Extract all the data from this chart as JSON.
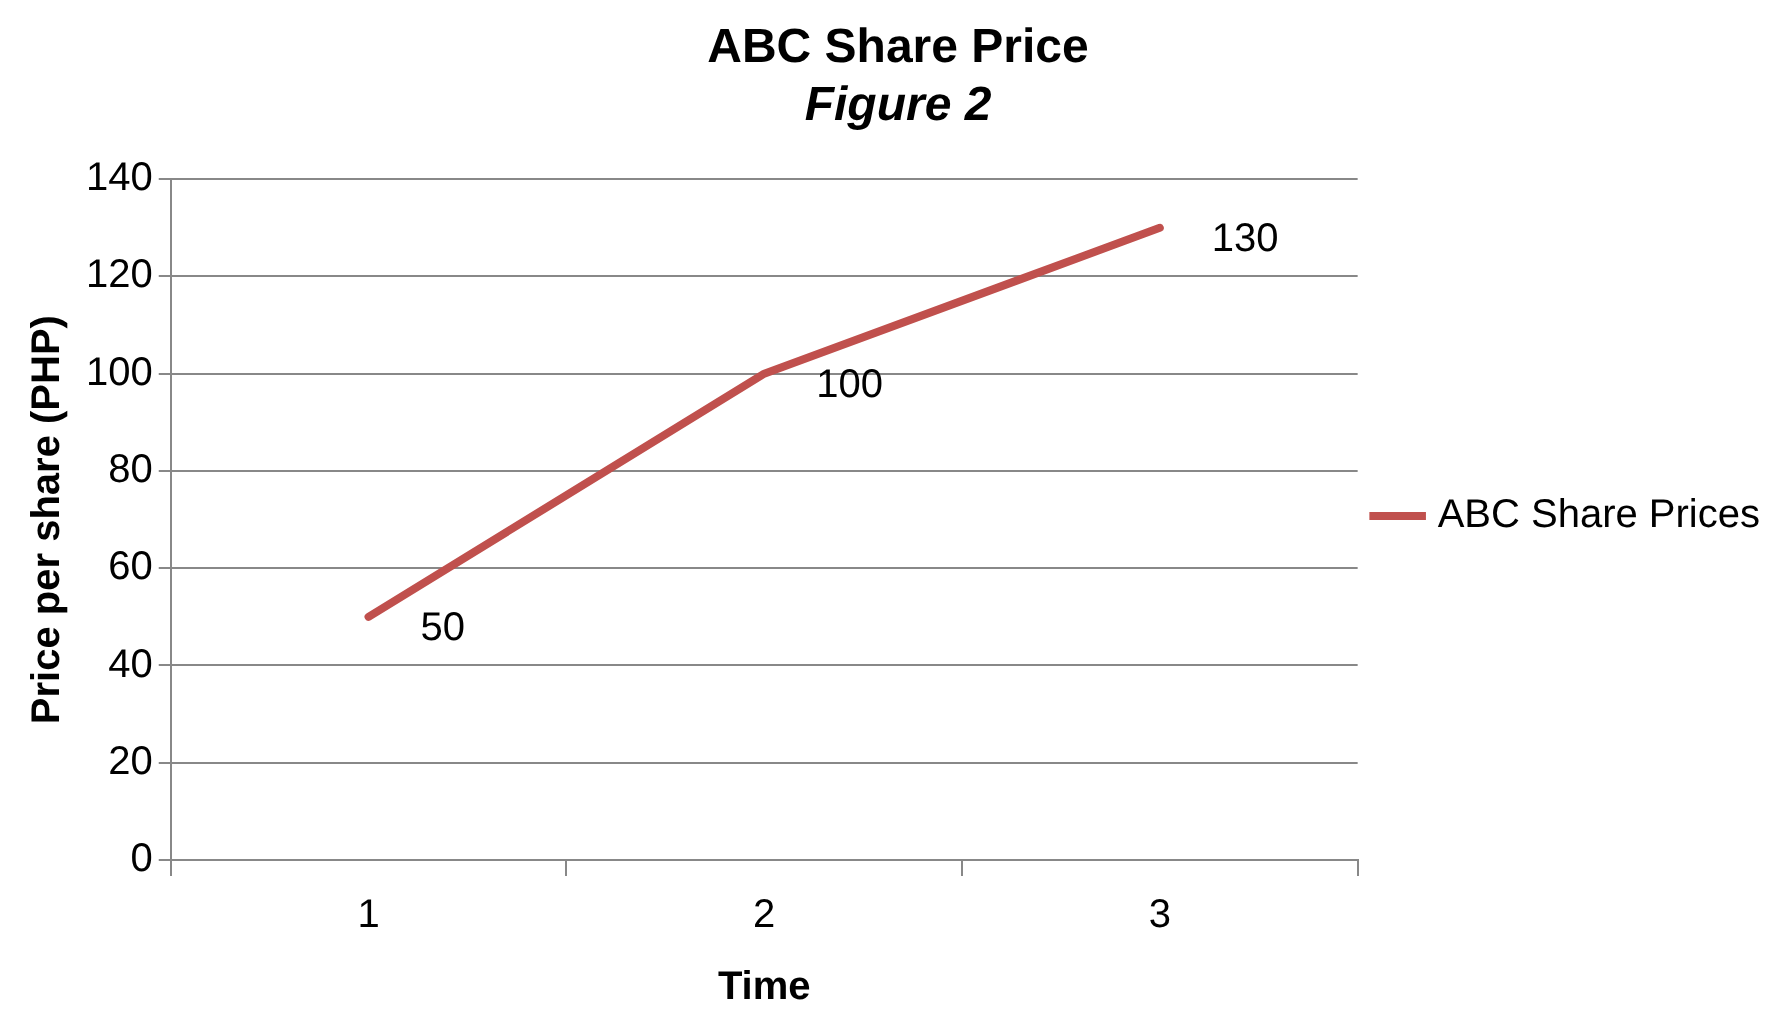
{
  "chart_data": {
    "type": "line",
    "title": "ABC Share Price",
    "subtitle": "Figure 2",
    "xlabel": "Time",
    "ylabel": "Price per share (PHP)",
    "categories": [
      "1",
      "2",
      "3"
    ],
    "series": [
      {
        "name": "ABC Share Prices",
        "color": "#c0504d",
        "values": [
          50,
          100,
          130
        ]
      }
    ],
    "ylim": [
      0,
      140
    ],
    "yticks": [
      0,
      20,
      40,
      60,
      80,
      100,
      120,
      140
    ],
    "grid": "y",
    "legend": "right",
    "marker": "none",
    "line_style": "solid",
    "data_labels": true
  }
}
